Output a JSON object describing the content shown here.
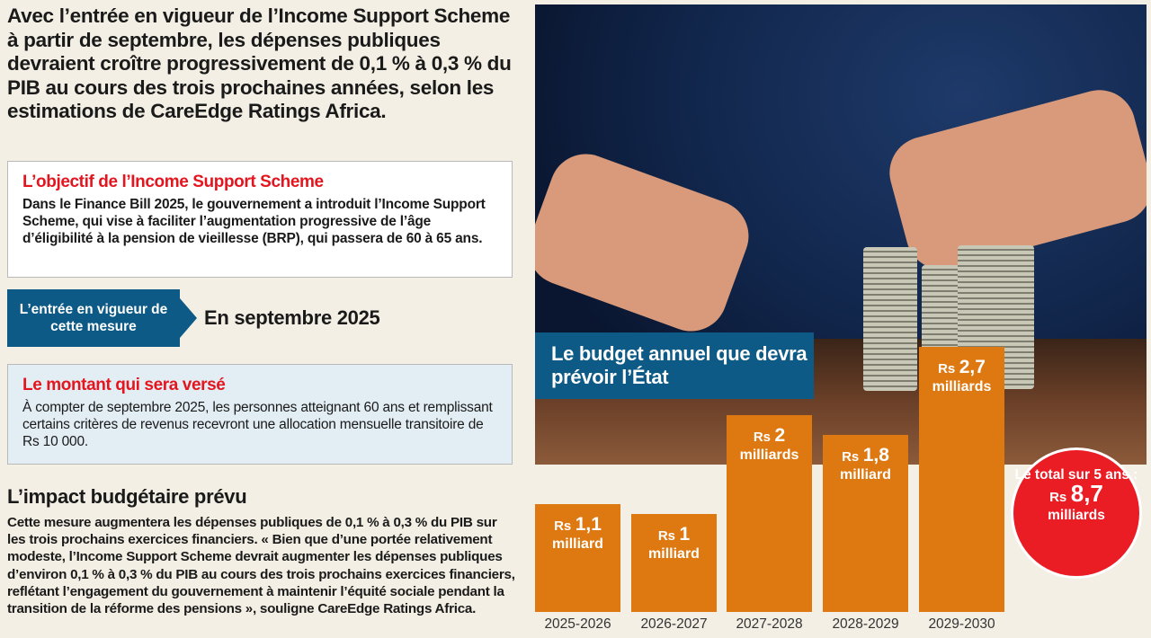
{
  "intro": "Avec l’entrée en vigueur de l’Income Support Scheme à partir de septembre, les dépenses publiques devraient croître progressivement de 0,1 % à 0,3 % du PIB au cours des trois prochaines années, selon les estimations de CareEdge Ratings Africa.",
  "objective": {
    "title": "L’objectif de l’Income Support Scheme",
    "text": "Dans le Finance Bill 2025, le gouvernement a introduit l’Income Support Scheme, qui vise à faciliter l’augmentation progressive de l’âge d’éligibilité à la pension de vieillesse (BRP), qui passera de 60 à 65 ans."
  },
  "entry": {
    "label": "L’entrée en vigueur de cette mesure",
    "value": "En septembre 2025"
  },
  "amount": {
    "title": "Le montant qui sera versé",
    "text": "À compter de septembre 2025, les personnes atteignant 60 ans et remplissant certains critères de revenus recevront une allocation mensuelle transitoire de Rs 10 000."
  },
  "impact": {
    "title": "L’impact budgétaire prévu",
    "text": "Cette mesure augmentera les dépenses publiques de 0,1 % à 0,3 % du PIB sur les trois prochains exercices financiers. « Bien que d’une portée relativement modeste, l’Income Support Scheme devrait augmenter les dépenses publiques d’environ 0,1 % à 0,3 % du PIB au cours des trois prochains exercices financiers, reflétant l’engagement du gouvernement à maintenir l’équité sociale pendant la transition de la réforme des pensions », souligne CareEdge Ratings Africa."
  },
  "chart_data": {
    "type": "bar",
    "title": "Le budget annuel que devra prévoir l’État",
    "categories": [
      "2025-2026",
      "2026-2027",
      "2027-2028",
      "2028-2029",
      "2029-2030"
    ],
    "values": [
      1.1,
      1,
      2,
      1.8,
      2.7
    ],
    "currency": "Rs",
    "value_labels": [
      "1,1",
      "1",
      "2",
      "1,8",
      "2,7"
    ],
    "unit_labels": [
      "milliard",
      "milliard",
      "milliards",
      "milliard",
      "milliards"
    ],
    "ylim": [
      0,
      2.7
    ],
    "bar_color": "#de7912",
    "total": {
      "label": "Le total sur 5 ans :",
      "currency": "Rs",
      "value": "8,7",
      "unit": "milliards",
      "color": "#ea1c24"
    }
  }
}
